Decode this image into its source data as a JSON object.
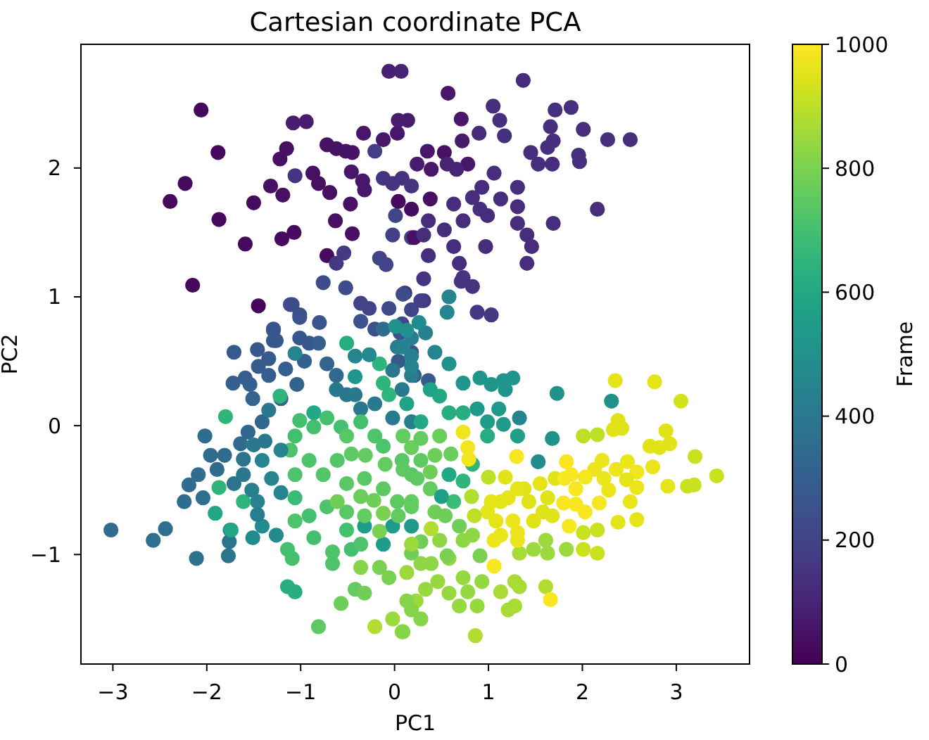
{
  "chart_data": {
    "type": "scatter",
    "title": "Cartesian coordinate PCA",
    "xlabel": "PC1",
    "ylabel": "PC2",
    "clabel": "Frame",
    "marker": "circle",
    "xlim": [
      -3.34,
      3.78
    ],
    "ylim": [
      -1.85,
      2.96
    ],
    "xticks": [
      -3,
      -2,
      -1,
      0,
      1,
      2,
      3
    ],
    "yticks": [
      -1,
      0,
      1,
      2
    ],
    "clim": [
      0,
      1000
    ],
    "cticks": [
      0,
      200,
      400,
      600,
      800,
      1000
    ],
    "x": [
      -0.06,
      0.07,
      -2.06,
      -1.88,
      -2.23,
      -2.39,
      -1.87,
      -1.59,
      -2.15,
      -1.45,
      -1.08,
      -0.94,
      -1.15,
      -1.22,
      -1.5,
      -1.32,
      -1.19,
      -1.06,
      -0.87,
      -0.81,
      -0.69,
      -0.72,
      -0.62,
      -0.52,
      -0.45,
      -0.33,
      -0.12,
      0.03,
      -0.21,
      -0.46,
      -0.34,
      -0.32,
      -0.12,
      -0.02,
      0.08,
      0.18,
      -0.47,
      -0.63,
      -0.45,
      -1.2,
      -1.07,
      -0.72,
      -0.54,
      -0.62,
      -0.02,
      0.18,
      0.01,
      1.37,
      0.57,
      1.05,
      1.12,
      1.17,
      0.71,
      0.04,
      0.14,
      0.9,
      0.72,
      1.71,
      1.88,
      1.66,
      1.69,
      1.63,
      2.01,
      2.27,
      2.51,
      1.45,
      1.53,
      1.68,
      1.96,
      1.97,
      0.35,
      0.53,
      0.24,
      0.39,
      0.56,
      0.78,
      0.66,
      1.06,
      0.93,
      0.83,
      1.13,
      1.31,
      2.16,
      0.04,
      0.18,
      0.38,
      0.63,
      0.91,
      0.99,
      1.31,
      0.36,
      0.53,
      0.73,
      1.31,
      1.41,
      1.46,
      1.41,
      1.69,
      0.21,
      0.31,
      0.63,
      0.97,
      0.36,
      0.69,
      0.73,
      0.31,
      0.11,
      0.31,
      0.71,
      0.83,
      0.88,
      1.03,
      -0.16,
      -0.09,
      -0.76,
      -0.52,
      -0.36,
      -0.27,
      -0.06,
      0.09,
      -1.09,
      -1.01,
      -0.8,
      -1.29,
      -1.26,
      -1.01,
      -0.91,
      -0.36,
      -0.21,
      0.18,
      0.28,
      0.08,
      0.06,
      0.18,
      0.04,
      0.21,
      0.36,
      -1.71,
      -1.72,
      -1.59,
      -1.46,
      -1.45,
      -1.29,
      -1.29,
      -1.11,
      -1.01,
      -1.16,
      -1.04,
      -1.21,
      -0.96,
      -1.51,
      -1.41,
      -1.56,
      -1.64,
      -0.81,
      -0.72,
      -0.62,
      -0.51,
      -0.36,
      -0.12,
      0.03,
      0.18,
      -0.02,
      0.18,
      -0.62,
      -0.42,
      -0.21,
      -0.02,
      0.18,
      0.08,
      -3.02,
      -2.57,
      -2.44,
      -2.11,
      -1.77,
      -1.76,
      -1.75,
      -2.24,
      -2.19,
      -2.09,
      -2.02,
      -1.96,
      -1.81,
      -1.89,
      -1.41,
      -1.31,
      -1.21,
      -1.46,
      -1.41,
      -1.26,
      -1.51,
      0.18,
      0.33,
      0.43,
      0.09,
      0.18,
      0.58,
      0.56,
      0.26,
      0.58,
      0.73,
      0.91,
      1.03,
      1.16,
      1.26,
      1.18,
      0.88,
      1.11,
      0.99,
      1.16,
      1.31,
      2.31,
      1.73,
      1.68,
      1.33,
      1.53,
      0.01,
      0.13,
      -0.32,
      -0.12,
      -0.02,
      0.18,
      0.48,
      0.58,
      0.73,
      0.28,
      0.13,
      0.38,
      0.99,
      0.83,
      0.73,
      0.63,
      -0.51,
      -0.16,
      -0.12,
      -0.06,
      -1.22,
      -1.8,
      -1.87,
      -1.91,
      -1.74,
      -1.61,
      -1.14,
      -1.06,
      -0.86,
      -1.01,
      -0.86,
      -0.72,
      -0.57,
      -0.36,
      -0.21,
      -0.12,
      0.08,
      0.18,
      -1.11,
      -0.91,
      -0.76,
      -0.61,
      -0.51,
      -0.32,
      -0.12,
      0.03,
      0.18,
      -1.06,
      -0.91,
      -0.72,
      -0.51,
      -0.32,
      -1.14,
      -1.09,
      -0.86,
      -0.66,
      -0.66,
      -0.46,
      -0.51,
      -0.36,
      0.09,
      0.24,
      0.38,
      0.18,
      0.04,
      0.28,
      0.54,
      0.69,
      0.43,
      0.28,
      0.18,
      -0.81,
      -0.57,
      -0.42,
      -0.32,
      -0.16,
      -0.06,
      0.58,
      0.73,
      0.83,
      0.48,
      0.39,
      0.28,
      0.56,
      0.91,
      -0.02,
      0.08,
      -0.21,
      0.18,
      0.13,
      0.23,
      0.28,
      0.18,
      0.09,
      0.13,
      0.88,
      0.78,
      0.93,
      0.73,
      0.69,
      0.58,
      0.46,
      0.33,
      0.86,
      1.21,
      1.28,
      1.13,
      1.28,
      1.33,
      1.61,
      1.48,
      1.61,
      1.83,
      1.63,
      1.33,
      2.01,
      2.16,
      2.01,
      2.16,
      2.01,
      2.16,
      3.2,
      3.43,
      3.19,
      3.12,
      3.05,
      2.35,
      2.77,
      2.38,
      2.42,
      2.33,
      2.89,
      2.72,
      2.93,
      2.82,
      2.91,
      2.75,
      2.58,
      2.58,
      2.51,
      2.38,
      2.58,
      2.48,
      2.36,
      2.23,
      2.13,
      2.21,
      2.28,
      1.71,
      1.63,
      1.58,
      1.68,
      1.48,
      1.43,
      1.38,
      1.21,
      1.31,
      1.13,
      1.03,
      0.99,
      1.26,
      1.31,
      1.31,
      1.06,
      1.13,
      0.73,
      0.78,
      0.79,
      1.83,
      1.88,
      1.81,
      1.93,
      2.03,
      1.93,
      1.86,
      1.06,
      1.66,
      -1.34,
      -1.34,
      -1.54,
      -2.04,
      -1.61,
      -1.71,
      -1.5,
      -1.38,
      -1.61,
      -1.34,
      -1.52,
      -1.46,
      -1.06,
      -1.21,
      -0.42,
      -0.27,
      -0.42,
      0.5,
      0.58,
      -1.06,
      -1.06,
      -1.06,
      -0.51,
      -0.46,
      -0.31,
      -0.1,
      0.09,
      0.28,
      0.18,
      0.48,
      0.6,
      0.43,
      0.38,
      -0.36,
      -0.22,
      -0.61,
      -0.12,
      -0.16,
      -0.36,
      0.82,
      0.39,
      0.85,
      1.0,
      1.18,
      1.55,
      1.08,
      2.47,
      2.03,
      1.3,
      1.8,
      2.18
    ],
    "values": [
      2.75,
      2.75,
      2.45,
      2.12,
      1.88,
      1.74,
      1.6,
      1.41,
      1.09,
      0.93,
      2.35,
      2.36,
      2.15,
      2.07,
      1.73,
      1.86,
      1.79,
      1.94,
      1.96,
      1.88,
      1.81,
      2.18,
      2.15,
      2.13,
      2.12,
      2.27,
      2.22,
      2.27,
      2.13,
      1.97,
      1.9,
      1.83,
      1.92,
      1.88,
      1.92,
      1.86,
      1.72,
      1.59,
      1.49,
      1.45,
      1.5,
      1.32,
      1.34,
      1.26,
      1.48,
      1.46,
      1.63,
      2.68,
      2.58,
      2.48,
      2.37,
      2.25,
      2.38,
      2.37,
      2.37,
      2.27,
      2.21,
      2.45,
      2.47,
      2.32,
      2.21,
      2.16,
      2.3,
      2.22,
      2.22,
      2.12,
      2.03,
      2.03,
      2.1,
      2.05,
      2.13,
      2.12,
      2.03,
      1.99,
      2.03,
      2.03,
      1.99,
      1.96,
      1.85,
      1.77,
      1.76,
      1.85,
      1.68,
      1.74,
      1.68,
      1.76,
      1.72,
      1.68,
      1.63,
      1.7,
      1.59,
      1.52,
      1.59,
      1.57,
      1.48,
      1.39,
      1.26,
      1.57,
      1.46,
      1.48,
      1.39,
      1.39,
      1.32,
      1.26,
      1.15,
      1.14,
      1.03,
      0.97,
      1.12,
      1.08,
      0.88,
      0.86,
      1.3,
      1.25,
      1.11,
      1.07,
      0.95,
      0.91,
      0.91,
      1.02,
      0.94,
      0.86,
      0.8,
      0.75,
      0.66,
      0.68,
      0.64,
      0.81,
      0.75,
      0.9,
      0.97,
      0.79,
      0.72,
      0.57,
      0.5,
      0.39,
      0.35,
      0.57,
      0.33,
      0.37,
      0.59,
      0.46,
      0.74,
      0.66,
      0.94,
      0.84,
      0.44,
      0.32,
      0.21,
      0.5,
      0.21,
      0.03,
      -0.05,
      -0.14,
      0.64,
      0.48,
      0.39,
      0.24,
      0.13,
      0.75,
      0.61,
      0.54,
      0.43,
      0.39,
      0.28,
      0.24,
      0.17,
      0.06,
      0.03,
      0.28,
      -0.81,
      -0.89,
      -0.8,
      -1.03,
      -1.01,
      -0.9,
      -0.81,
      -0.59,
      -0.46,
      -0.38,
      -0.08,
      -0.23,
      -0.23,
      -0.34,
      -0.27,
      -0.41,
      -0.52,
      -0.59,
      -0.78,
      -0.85,
      -0.87,
      0.68,
      0.72,
      0.57,
      0.61,
      0.46,
      1.0,
      0.88,
      0.8,
      0.48,
      0.33,
      0.37,
      0.32,
      0.35,
      0.37,
      0.28,
      0.13,
      0.13,
      0.03,
      0.01,
      -0.08,
      0.19,
      0.25,
      -0.1,
      0.06,
      -0.28,
      0.77,
      0.74,
      -0.78,
      -0.92,
      -0.78,
      -0.78,
      0.23,
      0.1,
      0.1,
      0.03,
      0.17,
      0.28,
      -0.08,
      -0.3,
      -0.43,
      -0.59,
      0.64,
      0.48,
      0.33,
      0.24,
      0.23,
      0.07,
      -0.48,
      -0.68,
      -0.81,
      -0.59,
      -1.25,
      -1.29,
      0.1,
      0.04,
      -0.01,
      0.06,
      -0.01,
      0.03,
      -0.08,
      -0.16,
      -0.27,
      -0.38,
      -0.19,
      -0.27,
      -0.38,
      -0.27,
      -0.45,
      -0.41,
      -0.49,
      -0.59,
      -0.63,
      -0.56,
      -0.7,
      -0.63,
      -0.67,
      -0.7,
      -0.96,
      -1.03,
      -0.87,
      -0.98,
      -1.07,
      -0.96,
      -0.81,
      -0.92,
      -0.34,
      -0.41,
      -0.49,
      -0.59,
      -0.7,
      -0.27,
      -0.7,
      -0.78,
      -0.67,
      -0.9,
      -0.99,
      -1.56,
      -1.38,
      -1.27,
      -1.3,
      -1.1,
      -1.18,
      -1.03,
      -0.89,
      -0.85,
      -0.89,
      -1.07,
      -1.07,
      -1.01,
      -1.01,
      -1.5,
      -1.6,
      -1.56,
      -0.92,
      -1.14,
      -1.36,
      -1.5,
      -1.43,
      -1.6,
      -1.36,
      -1.4,
      -1.29,
      -1.21,
      -1.18,
      -1.4,
      -1.3,
      -1.21,
      -1.27,
      -1.63,
      -1.43,
      -1.4,
      -1.29,
      -1.21,
      -1.25,
      -1.25,
      -0.96,
      -0.89,
      -0.96,
      -0.99,
      -0.99,
      -0.83,
      -0.81,
      -0.96,
      -0.99,
      -0.08,
      -0.07,
      -0.24,
      -0.39,
      -0.46,
      -0.47,
      0.19,
      0.35,
      0.34,
      0.04,
      -0.02,
      -0.03,
      -0.04,
      -0.16,
      -0.14,
      -0.17,
      -0.47,
      -0.32,
      -0.36,
      -0.48,
      -0.59,
      -0.75,
      -0.73,
      -0.28,
      -0.34,
      -0.41,
      -0.34,
      -0.27,
      -0.5,
      -0.41,
      -0.56,
      -0.67,
      -0.7,
      -0.74,
      -0.59,
      -0.49,
      -0.56,
      -0.49,
      -0.59,
      -0.59,
      -0.67,
      -0.74,
      -0.83,
      -0.89,
      -0.89,
      -0.85,
      -0.05,
      -0.17,
      -0.26,
      -0.28,
      -0.38,
      -0.41,
      -0.49,
      -0.67,
      -0.61,
      -0.78,
      -1.09,
      -1.35,
      0.52,
      0.39,
      0.32,
      -0.56,
      -0.26,
      -0.45,
      -0.15,
      -0.12,
      -0.38,
      0.12,
      -0.5,
      -0.69,
      0.56,
      -0.19,
      0.54,
      0.55,
      0.38,
      -0.55,
      -0.38,
      -0.08,
      -0.38,
      -0.74,
      -0.08,
      -0.22,
      -0.23,
      -0.3,
      -0.08,
      -0.1,
      -0.17,
      -0.08,
      -0.22,
      -0.23,
      -0.36,
      -0.55,
      -0.58,
      -0.59,
      -0.68,
      -0.82,
      -1.1,
      -0.55,
      -0.8,
      -0.7,
      -0.4,
      -0.4,
      -0.45,
      -0.74,
      -0.42,
      -0.4,
      -0.24,
      -0.6,
      -0.6
    ],
    "cvalues": [
      90,
      100,
      20,
      20,
      25,
      25,
      20,
      25,
      20,
      15,
      80,
      80,
      40,
      40,
      30,
      40,
      40,
      150,
      40,
      40,
      40,
      50,
      50,
      50,
      50,
      60,
      60,
      60,
      180,
      60,
      60,
      60,
      150,
      150,
      150,
      150,
      40,
      40,
      40,
      30,
      30,
      30,
      170,
      170,
      190,
      190,
      200,
      120,
      60,
      140,
      140,
      140,
      60,
      80,
      80,
      120,
      70,
      140,
      140,
      140,
      140,
      140,
      140,
      140,
      140,
      130,
      130,
      130,
      140,
      140,
      60,
      40,
      80,
      60,
      100,
      60,
      100,
      130,
      130,
      130,
      130,
      130,
      130,
      30,
      30,
      40,
      130,
      130,
      130,
      130,
      130,
      130,
      130,
      130,
      130,
      130,
      130,
      130,
      40,
      130,
      130,
      130,
      130,
      130,
      150,
      150,
      150,
      150,
      150,
      150,
      160,
      160,
      200,
      200,
      230,
      230,
      200,
      200,
      230,
      230,
      240,
      240,
      260,
      270,
      270,
      270,
      270,
      250,
      250,
      200,
      180,
      220,
      250,
      250,
      280,
      300,
      280,
      280,
      300,
      300,
      270,
      280,
      260,
      270,
      230,
      250,
      300,
      310,
      320,
      300,
      320,
      330,
      330,
      340,
      300,
      320,
      340,
      380,
      400,
      350,
      420,
      430,
      400,
      420,
      400,
      400,
      400,
      410,
      420,
      400,
      350,
      360,
      360,
      370,
      380,
      380,
      380,
      350,
      350,
      350,
      350,
      350,
      350,
      350,
      450,
      450,
      450,
      450,
      480,
      480,
      480,
      420,
      430,
      450,
      440,
      450,
      450,
      460,
      480,
      500,
      520,
      520,
      520,
      520,
      520,
      520,
      540,
      540,
      550,
      550,
      560,
      500,
      500,
      500,
      450,
      480,
      500,
      500,
      550,
      550,
      550,
      550,
      600,
      620,
      620,
      600,
      580,
      580,
      620,
      650,
      650,
      680,
      620,
      650,
      650,
      650,
      650,
      650,
      650,
      600,
      600,
      650,
      620,
      620,
      600,
      700,
      700,
      700,
      700,
      700,
      720,
      720,
      740,
      740,
      720,
      720,
      730,
      730,
      740,
      740,
      750,
      750,
      760,
      680,
      700,
      720,
      740,
      760,
      700,
      700,
      700,
      720,
      720,
      700,
      700,
      720,
      750,
      750,
      760,
      760,
      760,
      750,
      780,
      780,
      780,
      780,
      780,
      750,
      780,
      760,
      780,
      800,
      800,
      830,
      830,
      830,
      830,
      830,
      830,
      800,
      800,
      850,
      850,
      880,
      850,
      850,
      850,
      820,
      820,
      820,
      820,
      840,
      840,
      840,
      840,
      840,
      840,
      840,
      840,
      880,
      870,
      870,
      870,
      870,
      870,
      880,
      850,
      850,
      850,
      850,
      870,
      920,
      920,
      920,
      920,
      900,
      900,
      920,
      920,
      920,
      920,
      930,
      960,
      960,
      950,
      950,
      950,
      950,
      950,
      950,
      950,
      960,
      970,
      980,
      970,
      970,
      960,
      960,
      970,
      970,
      970,
      970,
      970,
      970,
      950,
      950,
      950,
      950,
      950,
      950,
      950,
      960,
      960,
      960,
      960,
      960,
      970,
      970,
      970,
      970,
      970,
      980,
      980,
      980,
      990,
      990,
      990,
      990,
      990,
      990,
      990,
      990,
      990,
      280,
      290,
      300,
      360,
      380,
      380,
      400,
      400,
      400,
      400,
      420,
      420,
      450,
      450,
      450,
      470,
      520,
      560,
      600,
      700,
      720,
      720,
      740,
      750,
      760,
      760,
      760,
      760,
      770,
      770,
      770,
      780,
      780,
      770,
      780,
      780,
      800,
      800,
      820,
      880,
      880,
      900,
      900,
      950,
      960,
      960,
      960,
      985,
      990,
      990,
      990
    ]
  }
}
